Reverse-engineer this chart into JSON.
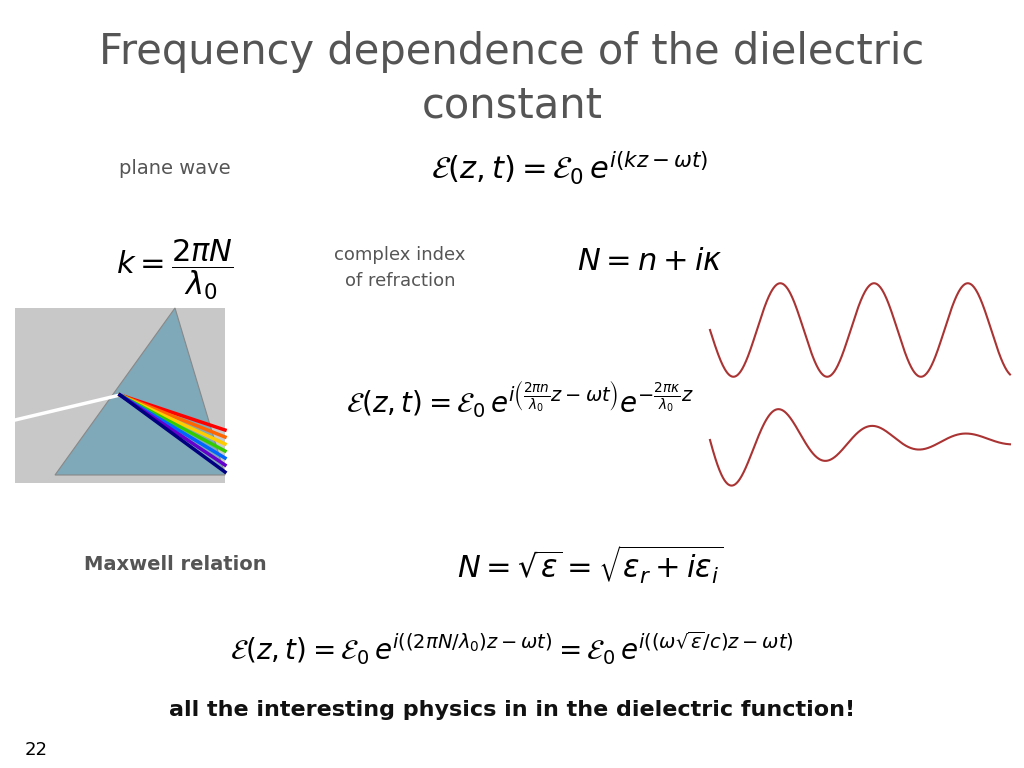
{
  "title_line1": "Frequency dependence of the dielectric",
  "title_line2": "constant",
  "title_color": "#555555",
  "title_fontsize": 28,
  "background_color": "#ffffff",
  "text_color": "#000000",
  "label_plane_wave": "plane wave",
  "label_complex_index": "complex index\nof refraction",
  "label_maxwell": "Maxwell relation",
  "label_bottom": "all the interesting physics in in the dielectric function!",
  "label_page": "22",
  "wave_color": "#aa3333",
  "label_color_gray": "#555555",
  "label_color_black": "#111111"
}
